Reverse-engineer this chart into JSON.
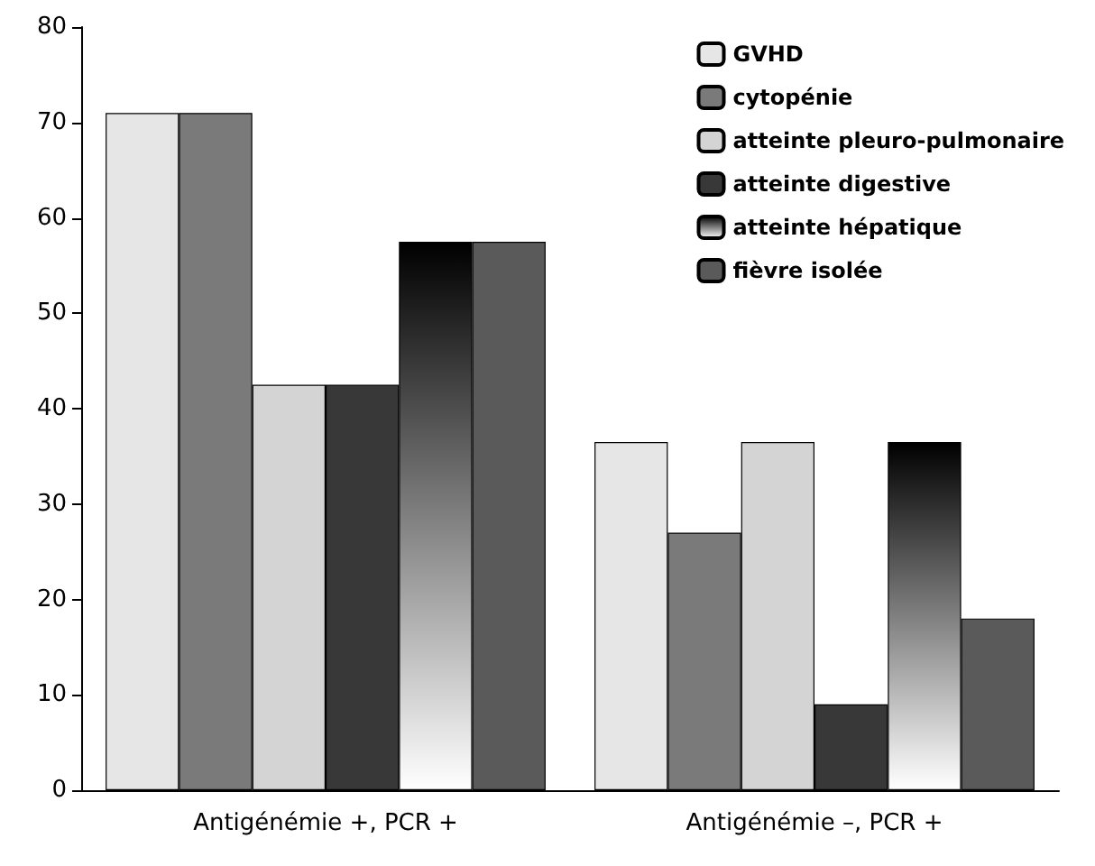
{
  "chart_data": {
    "type": "bar",
    "categories": [
      "Antigénémie +, PCR +",
      "Antigénémie –, PCR +"
    ],
    "series": [
      {
        "name": "GVHD",
        "color": "#e6e6e6",
        "values": [
          71,
          36.5
        ]
      },
      {
        "name": "cytopénie",
        "color": "#7a7a7a",
        "values": [
          71,
          27
        ]
      },
      {
        "name": "atteinte pleuro-pulmonaire",
        "color": "#d4d4d4",
        "values": [
          42.5,
          36.5
        ]
      },
      {
        "name": "atteinte digestive",
        "color": "#383838",
        "values": [
          42.5,
          9
        ]
      },
      {
        "name": "atteinte hépatique",
        "color": "#000000",
        "values": [
          57.5,
          36.5
        ]
      },
      {
        "name": "fièvre isolée",
        "color": "#5a5a5a",
        "values": [
          57.5,
          18
        ]
      }
    ],
    "ylim": [
      0,
      80
    ],
    "yticks": [
      0,
      10,
      20,
      30,
      40,
      50,
      60,
      70,
      80
    ],
    "grid": false,
    "legend": "top right"
  }
}
